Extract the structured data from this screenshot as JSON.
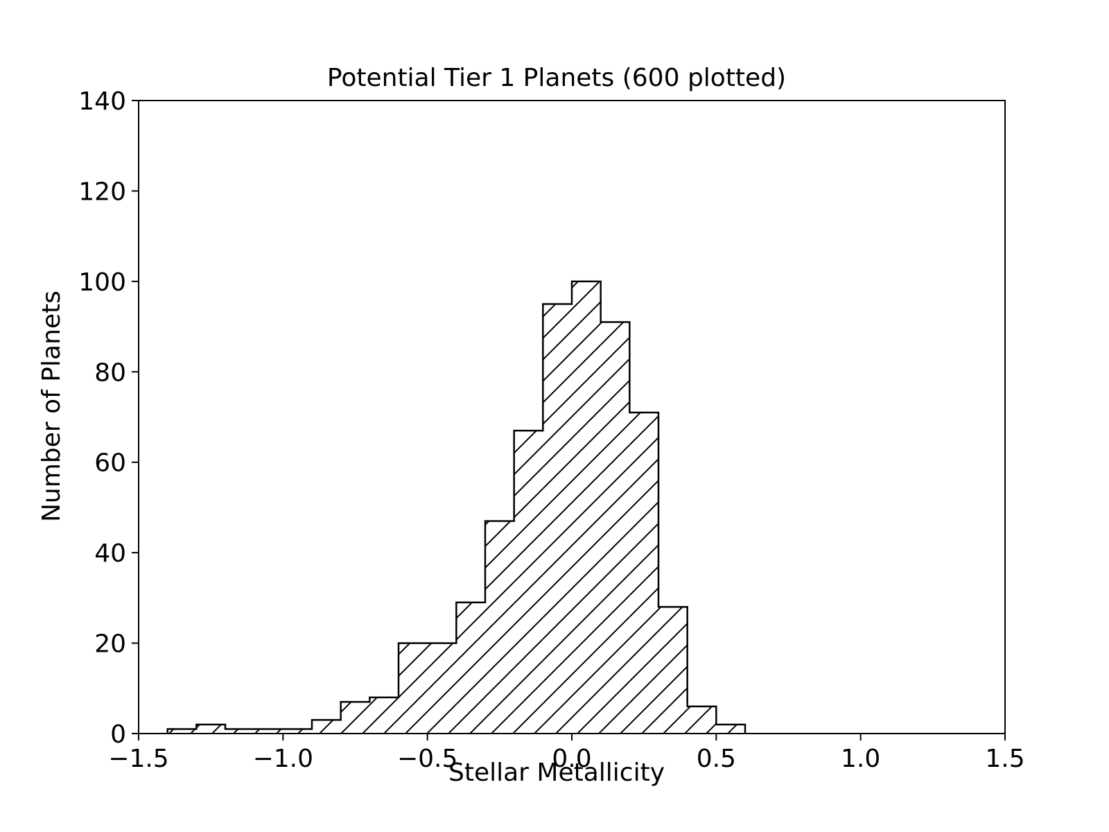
{
  "chart_data": {
    "type": "bar",
    "title": "Potential Tier 1 Planets (600 plotted)",
    "xlabel": "Stellar Metallicity",
    "ylabel": "Number of Planets",
    "xlim": [
      -1.5,
      1.5
    ],
    "ylim": [
      0,
      140
    ],
    "xticks": [
      "−1.5",
      "−1.0",
      "−0.5",
      "0.0",
      "0.5",
      "1.0",
      "1.5"
    ],
    "xtick_values": [
      -1.5,
      -1.0,
      -0.5,
      0.0,
      0.5,
      1.0,
      1.5
    ],
    "yticks": [
      "0",
      "20",
      "40",
      "60",
      "80",
      "100",
      "120",
      "140"
    ],
    "ytick_values": [
      0,
      20,
      40,
      60,
      80,
      100,
      120,
      140
    ],
    "bin_edges": [
      -1.4,
      -1.3,
      -1.2,
      -1.1,
      -1.0,
      -0.9,
      -0.8,
      -0.7,
      -0.6,
      -0.5,
      -0.4,
      -0.3,
      -0.2,
      -0.1,
      0.0,
      0.1,
      0.2,
      0.3,
      0.4,
      0.5,
      0.6
    ],
    "values": [
      1,
      2,
      1,
      1,
      1,
      3,
      7,
      8,
      20,
      20,
      29,
      47,
      67,
      95,
      100,
      91,
      71,
      28,
      6,
      2
    ],
    "histtype": "step",
    "hatch": "diagonal",
    "grid": false,
    "colors": {
      "edge": "#000000",
      "background": "#ffffff"
    }
  }
}
